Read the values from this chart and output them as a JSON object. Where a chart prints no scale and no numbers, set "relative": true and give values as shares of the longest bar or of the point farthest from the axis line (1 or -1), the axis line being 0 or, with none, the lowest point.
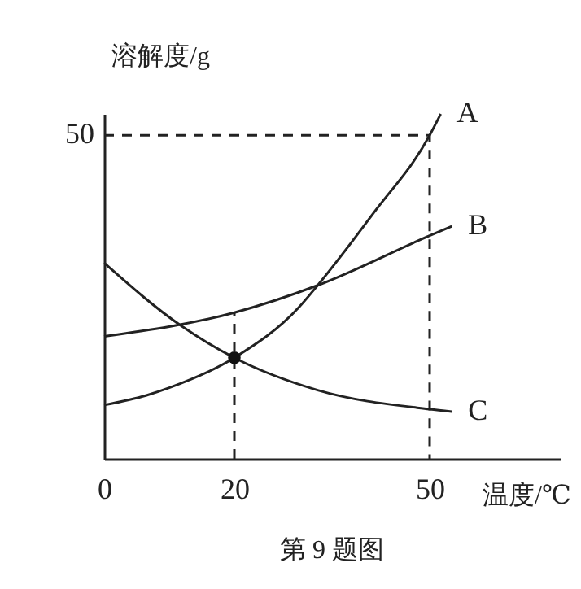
{
  "chart_data": {
    "type": "line",
    "relative": true,
    "xlabel": "温度/℃",
    "ylabel": "溶解度/g",
    "annotations": [
      "第 9 题图",
      {
        "text": "50",
        "x": 0,
        "y": 0.938
      }
    ],
    "xlim": [
      0,
      70
    ],
    "xticks": [
      0,
      20,
      50
    ],
    "grid": false,
    "legend": false,
    "series": [
      {
        "name": "A",
        "color": "#222222",
        "x": [
          0,
          6.5,
          10,
          20,
          30,
          32.8,
          41.4,
          50,
          51.7
        ],
        "values": [
          0.156,
          0.184,
          0.206,
          0.293,
          0.441,
          0.503,
          0.713,
          0.938,
          1
        ]
      },
      {
        "name": "B",
        "color": "#222222",
        "x": [
          0,
          20,
          32.8,
          50,
          53.4
        ],
        "values": [
          0.355,
          0.424,
          0.503,
          0.647,
          0.674
        ]
      },
      {
        "name": "C",
        "color": "#222222",
        "x": [
          0,
          11.8,
          20,
          32.8,
          50,
          53.4
        ],
        "values": [
          0.568,
          0.386,
          0.293,
          0.199,
          0.144,
          0.137
        ]
      },
      {
        "type": "line",
        "line_style": "dashed",
        "color": "#222222",
        "x": [
          20,
          20
        ],
        "values": [
          0,
          0.424
        ]
      },
      {
        "type": "line",
        "line_style": "dashed",
        "color": "#222222",
        "x": [
          0,
          50,
          50
        ],
        "values": [
          0.938,
          0.938,
          0
        ]
      },
      {
        "type": "scatter",
        "marker": "circle",
        "color": "#111111",
        "x": [
          20
        ],
        "values": [
          0.293
        ]
      }
    ]
  }
}
